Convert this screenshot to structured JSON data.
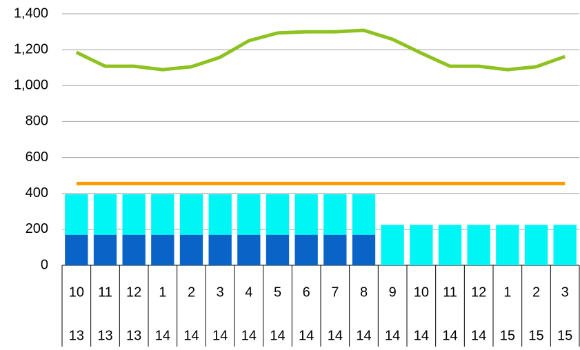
{
  "chart_data": {
    "type": "bar",
    "categories": [
      [
        "10",
        "13"
      ],
      [
        "11",
        "13"
      ],
      [
        "12",
        "13"
      ],
      [
        "1",
        "14"
      ],
      [
        "2",
        "14"
      ],
      [
        "3",
        "14"
      ],
      [
        "4",
        "14"
      ],
      [
        "5",
        "14"
      ],
      [
        "6",
        "14"
      ],
      [
        "7",
        "14"
      ],
      [
        "8",
        "14"
      ],
      [
        "9",
        "14"
      ],
      [
        "10",
        "14"
      ],
      [
        "11",
        "14"
      ],
      [
        "12",
        "14"
      ],
      [
        "1",
        "15"
      ],
      [
        "2",
        "15"
      ],
      [
        "3",
        "15"
      ]
    ],
    "series": [
      {
        "type": "bar",
        "color": "#0a64c8",
        "values": [
          170,
          170,
          170,
          170,
          170,
          170,
          170,
          170,
          170,
          170,
          170,
          null,
          null,
          null,
          null,
          null,
          null,
          null
        ]
      },
      {
        "type": "bar",
        "color": "#00f5f5",
        "values": [
          225,
          225,
          225,
          225,
          225,
          225,
          225,
          225,
          225,
          225,
          225,
          225,
          225,
          225,
          225,
          225,
          225,
          225
        ]
      },
      {
        "type": "line",
        "color": "#ff9900",
        "values": [
          455,
          455,
          455,
          455,
          455,
          455,
          455,
          455,
          455,
          455,
          455,
          455,
          455,
          455,
          455,
          455,
          455,
          455
        ]
      },
      {
        "type": "line",
        "color": "#8dc21f",
        "values": [
          1185,
          1108,
          1108,
          1089,
          1105,
          1158,
          1250,
          1293,
          1300,
          1300,
          1308,
          1258,
          1181,
          1108,
          1108,
          1089,
          1105,
          1162
        ]
      }
    ],
    "ylim": [
      0,
      1400
    ],
    "yticks": [
      0,
      200,
      400,
      600,
      800,
      {
        "value": 1000,
        "label": "1,000"
      },
      {
        "value": 1200,
        "label": "1,200"
      },
      {
        "value": 1400,
        "label": "1,400"
      }
    ],
    "grid": true
  }
}
